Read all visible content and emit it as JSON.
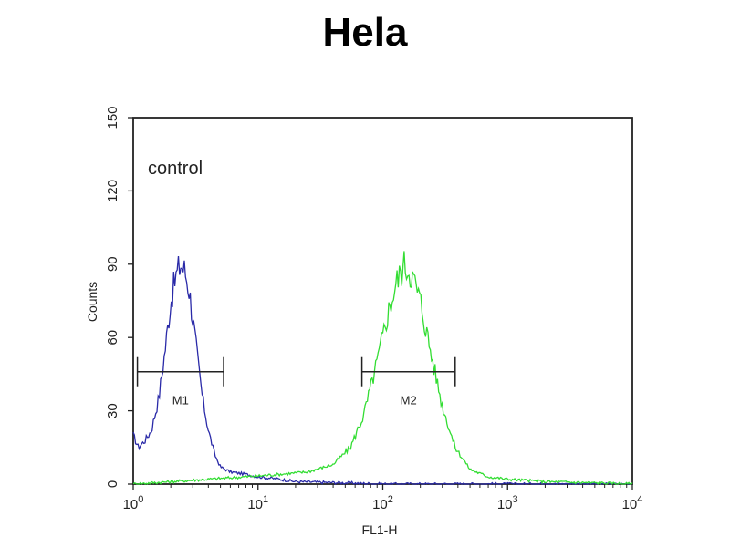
{
  "chart_data": {
    "type": "line",
    "title": "Hela",
    "xlabel": "FL1-H",
    "ylabel": "Counts",
    "x_scale": "log",
    "xlim": [
      1,
      10000
    ],
    "ylim": [
      0,
      150
    ],
    "x_ticks": [
      {
        "base": "10",
        "exp": "0",
        "value": 1
      },
      {
        "base": "10",
        "exp": "1",
        "value": 10
      },
      {
        "base": "10",
        "exp": "2",
        "value": 100
      },
      {
        "base": "10",
        "exp": "3",
        "value": 1000
      },
      {
        "base": "10",
        "exp": "4",
        "value": 10000
      }
    ],
    "y_ticks": [
      0,
      30,
      60,
      90,
      120,
      150
    ],
    "grid": false,
    "annotation": "control",
    "series": [
      {
        "color": "#2a2aa8",
        "points": [
          [
            1.0,
            20
          ],
          [
            1.1,
            15
          ],
          [
            1.25,
            18
          ],
          [
            1.4,
            22
          ],
          [
            1.6,
            35
          ],
          [
            1.8,
            55
          ],
          [
            2.0,
            75
          ],
          [
            2.2,
            85
          ],
          [
            2.4,
            90
          ],
          [
            2.6,
            87
          ],
          [
            2.8,
            80
          ],
          [
            3.0,
            68
          ],
          [
            3.3,
            50
          ],
          [
            3.6,
            35
          ],
          [
            4.0,
            22
          ],
          [
            4.5,
            12
          ],
          [
            5.0,
            7
          ],
          [
            6.0,
            5
          ],
          [
            8.0,
            4
          ],
          [
            10,
            3
          ],
          [
            15,
            2
          ],
          [
            20,
            1
          ],
          [
            50,
            0.5
          ],
          [
            100,
            0
          ],
          [
            10000,
            0
          ]
        ]
      },
      {
        "color": "#33dd33",
        "points": [
          [
            1.0,
            0
          ],
          [
            2,
            1
          ],
          [
            4,
            2
          ],
          [
            8,
            3
          ],
          [
            15,
            4
          ],
          [
            25,
            5
          ],
          [
            40,
            8
          ],
          [
            55,
            15
          ],
          [
            70,
            28
          ],
          [
            90,
            50
          ],
          [
            110,
            70
          ],
          [
            130,
            83
          ],
          [
            150,
            90
          ],
          [
            170,
            86
          ],
          [
            200,
            75
          ],
          [
            240,
            55
          ],
          [
            300,
            32
          ],
          [
            380,
            15
          ],
          [
            500,
            6
          ],
          [
            700,
            3
          ],
          [
            1000,
            2
          ],
          [
            2000,
            1
          ],
          [
            5000,
            0.5
          ],
          [
            10000,
            0
          ]
        ]
      }
    ],
    "markers": [
      {
        "label": "M1",
        "x_start": 1.08,
        "x_end": 5.3,
        "y": 46
      },
      {
        "label": "M2",
        "x_start": 68,
        "x_end": 380,
        "y": 46
      }
    ]
  }
}
